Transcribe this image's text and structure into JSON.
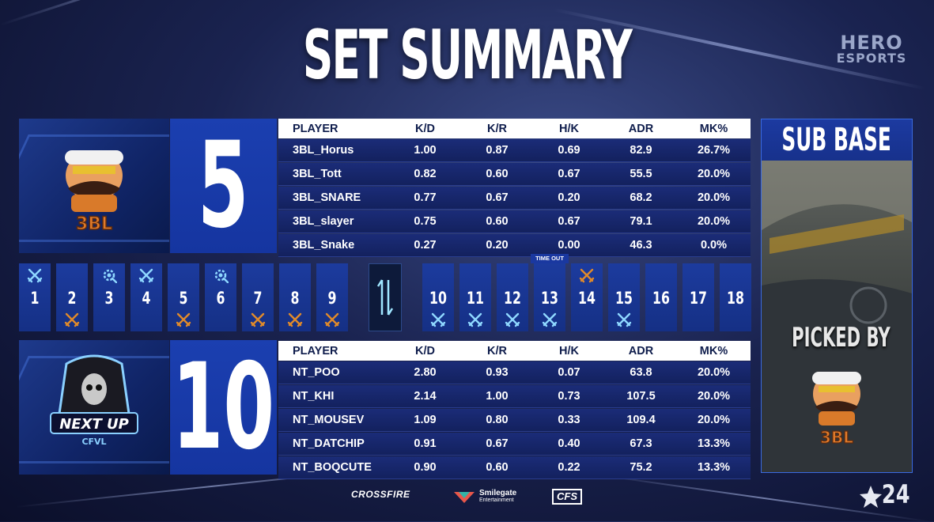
{
  "title": "SET SUMMARY",
  "brand": {
    "line1": "HERO",
    "line2": "ESPORTS"
  },
  "colors": {
    "win_a": "#e08a2a",
    "win_b": "#8fd8ff",
    "panel": "#1b3fb0",
    "accent": "#3a6ae0"
  },
  "columns": [
    "PLAYER",
    "K/D",
    "K/R",
    "H/K",
    "ADR",
    "MK%"
  ],
  "team_top": {
    "logo_text": "3BL",
    "score": "5",
    "players": [
      {
        "name": "3BL_Horus",
        "kd": "1.00",
        "kr": "0.87",
        "hk": "0.69",
        "adr": "82.9",
        "mk": "26.7%"
      },
      {
        "name": "3BL_Tott",
        "kd": "0.82",
        "kr": "0.60",
        "hk": "0.67",
        "adr": "55.5",
        "mk": "20.0%"
      },
      {
        "name": "3BL_SNARE",
        "kd": "0.77",
        "kr": "0.67",
        "hk": "0.20",
        "adr": "68.2",
        "mk": "20.0%"
      },
      {
        "name": "3BL_slayer",
        "kd": "0.75",
        "kr": "0.60",
        "hk": "0.67",
        "adr": "79.1",
        "mk": "20.0%"
      },
      {
        "name": "3BL_Snake",
        "kd": "0.27",
        "kr": "0.20",
        "hk": "0.00",
        "adr": "46.3",
        "mk": "0.0%"
      }
    ]
  },
  "team_bottom": {
    "logo_text": "NEXT UP",
    "logo_sub": "CFVL",
    "score": "10",
    "players": [
      {
        "name": "NT_POO",
        "kd": "2.80",
        "kr": "0.93",
        "hk": "0.07",
        "adr": "63.8",
        "mk": "20.0%"
      },
      {
        "name": "NT_KHI",
        "kd": "2.14",
        "kr": "1.00",
        "hk": "0.73",
        "adr": "107.5",
        "mk": "20.0%"
      },
      {
        "name": "NT_MOUSEV",
        "kd": "1.09",
        "kr": "0.80",
        "hk": "0.33",
        "adr": "109.4",
        "mk": "20.0%"
      },
      {
        "name": "NT_DATCHIP",
        "kd": "0.91",
        "kr": "0.67",
        "hk": "0.40",
        "adr": "67.3",
        "mk": "13.3%"
      },
      {
        "name": "NT_BOQCUTE",
        "kd": "0.90",
        "kr": "0.60",
        "hk": "0.22",
        "adr": "75.2",
        "mk": "13.3%"
      }
    ]
  },
  "rounds": [
    {
      "num": "1",
      "top": "swords-icon",
      "top_color": "#8fd8ff",
      "bot": ""
    },
    {
      "num": "2",
      "top": "",
      "bot": "swords-icon",
      "bot_color": "#e08a2a"
    },
    {
      "num": "3",
      "top": "gear-bomb-icon",
      "top_color": "#8fd8ff",
      "bot": ""
    },
    {
      "num": "4",
      "top": "swords-icon",
      "top_color": "#8fd8ff",
      "bot": ""
    },
    {
      "num": "5",
      "top": "",
      "bot": "swords-icon",
      "bot_color": "#e08a2a"
    },
    {
      "num": "6",
      "top": "gear-bomb-icon",
      "top_color": "#8fd8ff",
      "bot": ""
    },
    {
      "num": "7",
      "top": "",
      "bot": "swords-icon",
      "bot_color": "#e08a2a"
    },
    {
      "num": "8",
      "top": "",
      "bot": "swords-icon",
      "bot_color": "#e08a2a"
    },
    {
      "num": "9",
      "top": "",
      "bot": "swords-icon",
      "bot_color": "#e08a2a"
    },
    {
      "num": "10",
      "top": "",
      "bot": "swords-icon",
      "bot_color": "#8fd8ff"
    },
    {
      "num": "11",
      "top": "",
      "bot": "swords-icon",
      "bot_color": "#8fd8ff"
    },
    {
      "num": "12",
      "top": "",
      "bot": "swords-icon",
      "bot_color": "#8fd8ff"
    },
    {
      "num": "13",
      "top": "",
      "bot": "swords-icon",
      "bot_color": "#8fd8ff"
    },
    {
      "num": "14",
      "top": "swords-icon",
      "top_color": "#e08a2a",
      "bot": ""
    },
    {
      "num": "15",
      "top": "",
      "bot": "swords-icon",
      "bot_color": "#8fd8ff"
    },
    {
      "num": "16",
      "top": "",
      "bot": ""
    },
    {
      "num": "17",
      "top": "",
      "bot": ""
    },
    {
      "num": "18",
      "top": "",
      "bot": ""
    }
  ],
  "timeout_label": "TIME OUT",
  "map": {
    "name": "SUB BASE",
    "picked_label": "PICKED BY",
    "picker_text": "3BL"
  },
  "sponsors": {
    "cf": "CROSSFIRE",
    "sg1": "Smilegate",
    "sg2": "Entertainment",
    "cfs": "CFS"
  },
  "year": "24"
}
